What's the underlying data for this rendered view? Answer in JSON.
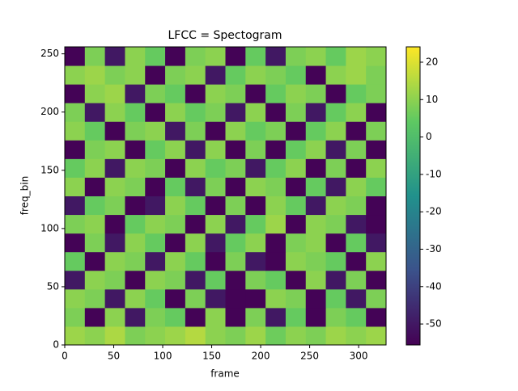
{
  "chart_data": {
    "type": "heatmap",
    "title": "LFCC = Spectogram",
    "xlabel": "frame",
    "ylabel": "freq_bin",
    "xlim": [
      0,
      328
    ],
    "ylim": [
      0,
      256
    ],
    "xticks": [
      0,
      50,
      100,
      150,
      200,
      250,
      300
    ],
    "yticks": [
      0,
      50,
      100,
      150,
      200,
      250
    ],
    "colormap": "viridis",
    "clim": [
      -55.6,
      24.1
    ],
    "cticks": [
      -50,
      -40,
      -30,
      -20,
      -10,
      0,
      10,
      20
    ],
    "z": [
      [
        12,
        10,
        14,
        8,
        10,
        12,
        15,
        10,
        8,
        12,
        6,
        10,
        8,
        12,
        10,
        12
      ],
      [
        8,
        -55,
        10,
        -50,
        8,
        5,
        -55,
        10,
        -55,
        8,
        -50,
        5,
        -55,
        8,
        5,
        -55
      ],
      [
        10,
        8,
        -50,
        10,
        5,
        -55,
        8,
        -50,
        -55,
        -55,
        10,
        8,
        -55,
        5,
        -50,
        8
      ],
      [
        -50,
        10,
        8,
        -55,
        10,
        8,
        -50,
        5,
        -55,
        8,
        5,
        -55,
        10,
        -50,
        8,
        -55
      ],
      [
        5,
        -55,
        10,
        8,
        -50,
        10,
        5,
        -55,
        8,
        -50,
        -55,
        10,
        8,
        5,
        -55,
        10
      ],
      [
        -55,
        8,
        -50,
        10,
        5,
        -55,
        10,
        -50,
        5,
        10,
        -55,
        8,
        10,
        -55,
        5,
        -50
      ],
      [
        8,
        10,
        -55,
        5,
        10,
        8,
        -55,
        10,
        -50,
        5,
        12,
        -55,
        10,
        8,
        -50,
        -55
      ],
      [
        -50,
        5,
        8,
        -55,
        -50,
        10,
        5,
        -55,
        8,
        -55,
        10,
        5,
        -50,
        10,
        8,
        -55
      ],
      [
        10,
        -55,
        10,
        8,
        -55,
        5,
        -50,
        8,
        -55,
        10,
        8,
        -55,
        5,
        -50,
        10,
        5
      ],
      [
        5,
        10,
        -50,
        10,
        8,
        -55,
        10,
        5,
        8,
        -50,
        5,
        10,
        -55,
        8,
        -55,
        10
      ],
      [
        -55,
        8,
        10,
        -55,
        5,
        10,
        -50,
        10,
        -55,
        8,
        -55,
        5,
        10,
        -50,
        8,
        -55
      ],
      [
        10,
        5,
        -55,
        8,
        10,
        -50,
        8,
        -55,
        10,
        5,
        8,
        -55,
        5,
        10,
        -55,
        8
      ],
      [
        8,
        -50,
        10,
        5,
        -55,
        10,
        5,
        8,
        -50,
        10,
        -55,
        8,
        -50,
        5,
        10,
        -55
      ],
      [
        -55,
        10,
        12,
        -50,
        8,
        5,
        -55,
        10,
        8,
        -55,
        5,
        10,
        8,
        -55,
        5,
        8
      ],
      [
        10,
        12,
        8,
        10,
        -55,
        8,
        10,
        -50,
        5,
        10,
        8,
        5,
        -55,
        10,
        12,
        8
      ],
      [
        -55,
        8,
        -50,
        10,
        5,
        -55,
        8,
        10,
        -55,
        5,
        -50,
        8,
        10,
        5,
        12,
        10
      ]
    ]
  }
}
